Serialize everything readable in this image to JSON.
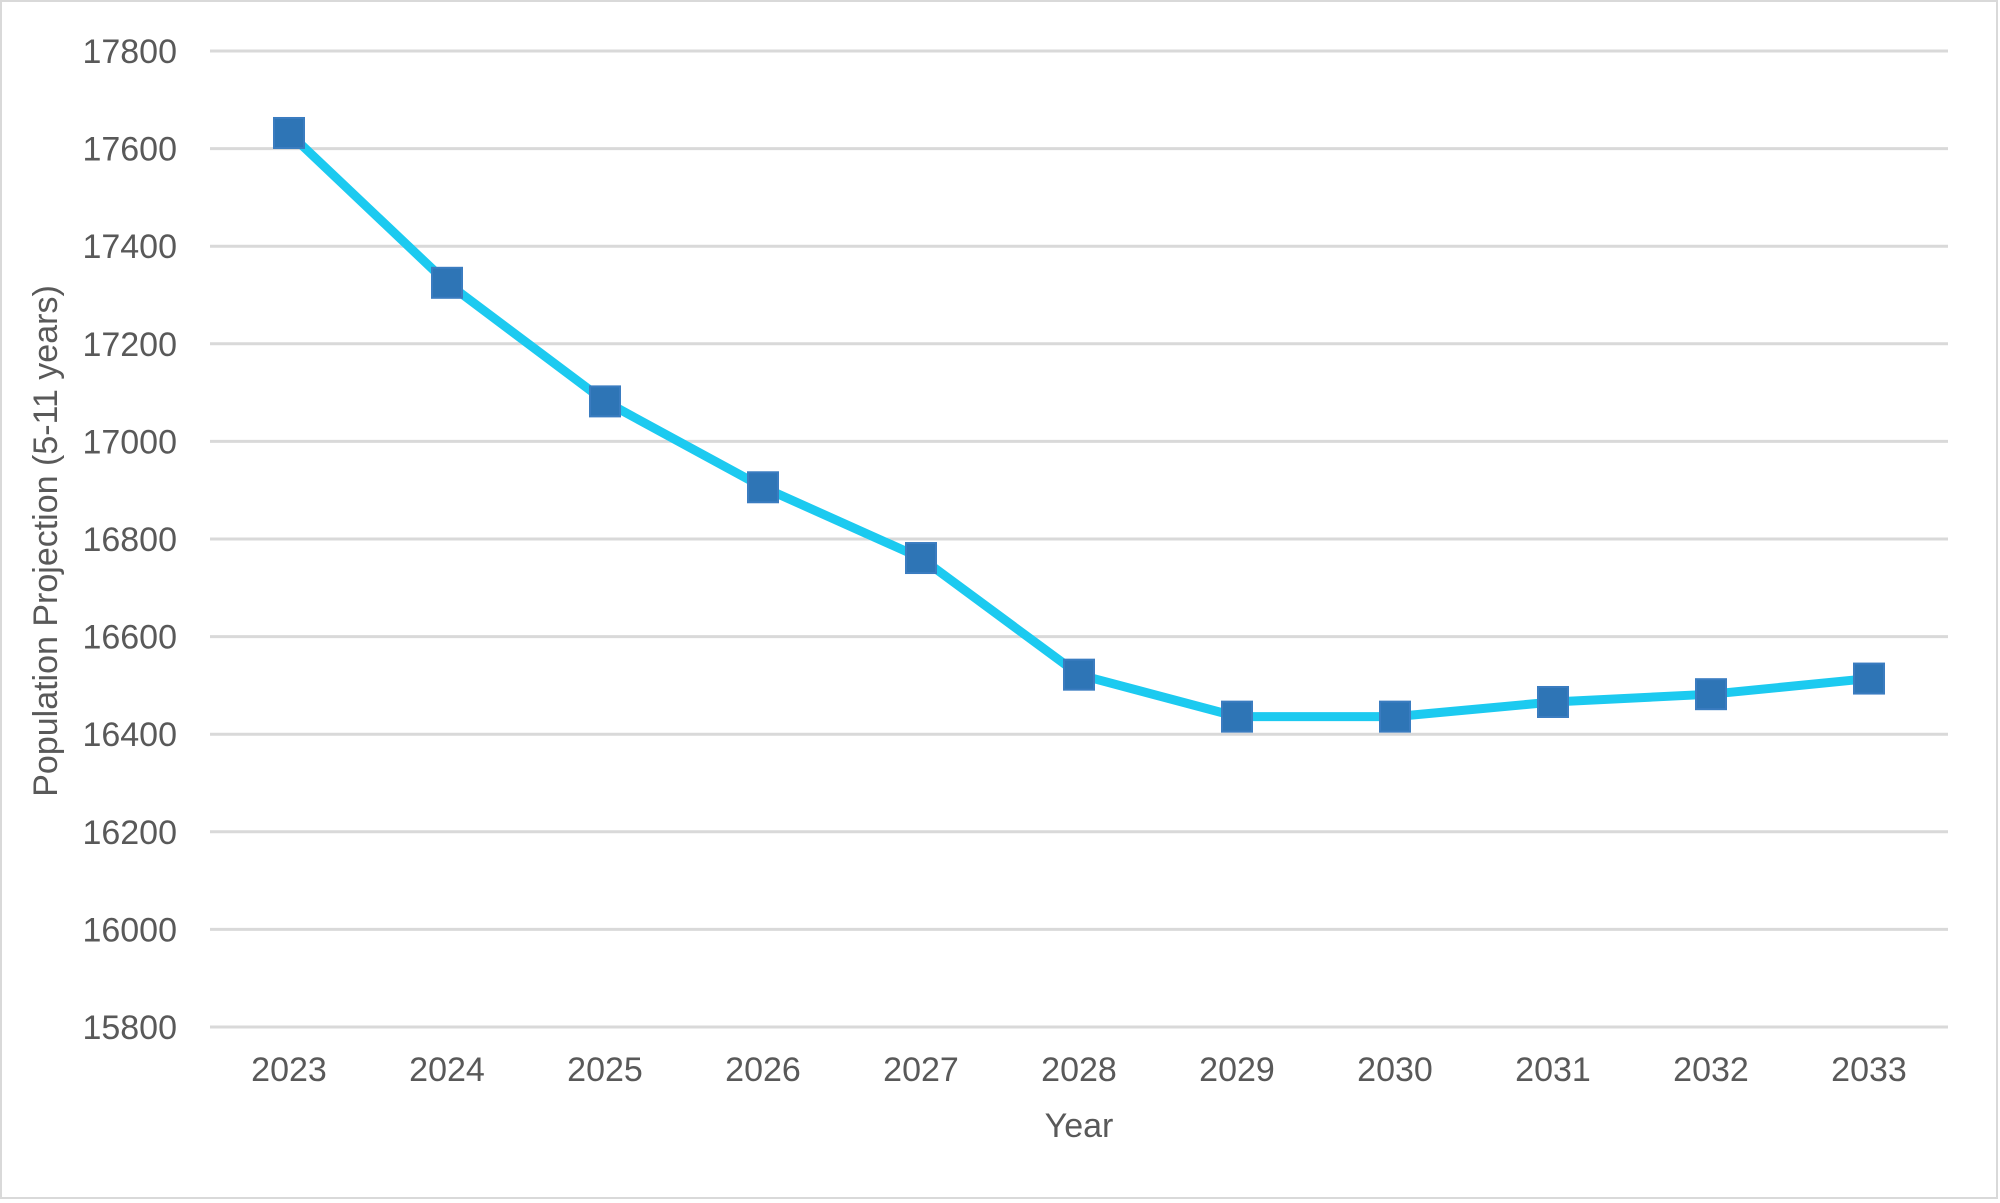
{
  "chart_data": {
    "type": "line",
    "title": "",
    "xlabel": "Year",
    "ylabel": "Population Projection (5-11 years)",
    "categories": [
      "2023",
      "2024",
      "2025",
      "2026",
      "2027",
      "2028",
      "2029",
      "2030",
      "2031",
      "2032",
      "2033"
    ],
    "series": [
      {
        "values": [
          17632,
          17325,
          17082,
          16906,
          16761,
          16522,
          16436,
          16436,
          16466,
          16482,
          16514
        ],
        "line_color": "#1ccaf0",
        "marker_color": "#2e75b6",
        "marker": "square"
      }
    ],
    "ylim": [
      15800,
      17800
    ],
    "yticks": [
      15800,
      16000,
      16200,
      16400,
      16600,
      16800,
      17000,
      17200,
      17400,
      17600,
      17800
    ],
    "grid": true,
    "legend": "none"
  }
}
